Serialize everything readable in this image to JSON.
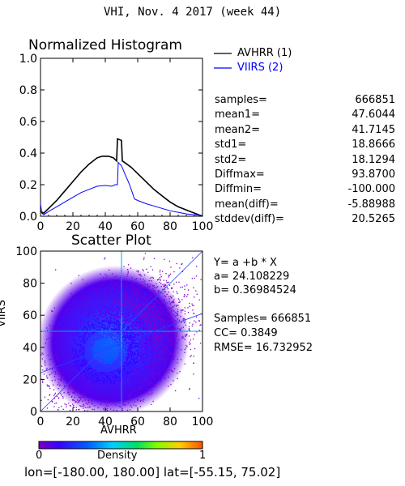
{
  "page_title": "VHI,  Nov. 4 2017 (week 44)",
  "footer": {
    "lon_label": "lon=",
    "lon_range": "[-180.00, 180.00]",
    "lat_label": "lat=",
    "lat_range": "[-55.15, 75.02]"
  },
  "colorbar": {
    "min": "0",
    "label": "Density",
    "max": "1"
  },
  "chart_data": [
    {
      "type": "line",
      "title": "Normalized Histogram",
      "xlim": [
        0,
        100
      ],
      "ylim": [
        0,
        1
      ],
      "x_ticks": [
        "0",
        "20",
        "40",
        "60",
        "80",
        "100"
      ],
      "y_ticks": [
        "0.0",
        "0.2",
        "0.4",
        "0.6",
        "0.8",
        "1.0"
      ],
      "series": [
        {
          "name": "AVHRR (1)",
          "color": "#000000",
          "points": [
            [
              0,
              0.03
            ],
            [
              2,
              0.02
            ],
            [
              5,
              0.05
            ],
            [
              10,
              0.1
            ],
            [
              15,
              0.16
            ],
            [
              20,
              0.22
            ],
            [
              25,
              0.28
            ],
            [
              30,
              0.33
            ],
            [
              35,
              0.37
            ],
            [
              38,
              0.38
            ],
            [
              42,
              0.38
            ],
            [
              45,
              0.37
            ],
            [
              47,
              0.35
            ],
            [
              47.5,
              0.49
            ],
            [
              50,
              0.48
            ],
            [
              50.5,
              0.35
            ],
            [
              52,
              0.34
            ],
            [
              56,
              0.31
            ],
            [
              60,
              0.27
            ],
            [
              65,
              0.22
            ],
            [
              70,
              0.17
            ],
            [
              75,
              0.13
            ],
            [
              80,
              0.09
            ],
            [
              85,
              0.06
            ],
            [
              90,
              0.04
            ],
            [
              95,
              0.02
            ],
            [
              100,
              0.0
            ]
          ]
        },
        {
          "name": "VIIRS (2)",
          "color": "#0000ff",
          "points": [
            [
              0,
              0.08
            ],
            [
              0.8,
              0.02
            ],
            [
              2,
              0.01
            ],
            [
              5,
              0.03
            ],
            [
              10,
              0.06
            ],
            [
              15,
              0.09
            ],
            [
              20,
              0.12
            ],
            [
              25,
              0.15
            ],
            [
              30,
              0.17
            ],
            [
              35,
              0.19
            ],
            [
              40,
              0.195
            ],
            [
              44,
              0.19
            ],
            [
              46,
              0.2
            ],
            [
              47.5,
              0.2
            ],
            [
              48,
              0.34
            ],
            [
              50,
              0.32
            ],
            [
              52,
              0.27
            ],
            [
              55,
              0.2
            ],
            [
              57,
              0.14
            ],
            [
              58,
              0.11
            ],
            [
              60,
              0.1
            ],
            [
              65,
              0.08
            ],
            [
              70,
              0.065
            ],
            [
              75,
              0.05
            ],
            [
              80,
              0.035
            ],
            [
              85,
              0.025
            ],
            [
              90,
              0.015
            ],
            [
              95,
              0.01
            ],
            [
              100,
              0.005
            ]
          ]
        }
      ],
      "legend_placement": "right"
    },
    {
      "type": "scatter",
      "title": "Scatter Plot",
      "xlabel": "AVHRR",
      "ylabel": "VIIRS",
      "xlim": [
        0,
        100
      ],
      "ylim": [
        0,
        100
      ],
      "x_ticks": [
        "0",
        "20",
        "40",
        "60",
        "80",
        "100"
      ],
      "y_ticks": [
        "0",
        "20",
        "40",
        "60",
        "80",
        "100"
      ],
      "regression": {
        "a": 24.108229,
        "b": 0.36984524
      },
      "colormap": "density"
    }
  ],
  "stats": [
    {
      "label": "samples=",
      "value": "666851"
    },
    {
      "label": "mean1=",
      "value": "47.6044"
    },
    {
      "label": "mean2=",
      "value": "41.7145"
    },
    {
      "label": "std1=",
      "value": "18.8666"
    },
    {
      "label": "std2=",
      "value": "18.1294"
    },
    {
      "label": "Diffmax=",
      "value": "93.8700"
    },
    {
      "label": "Diffmin=",
      "value": "-100.000"
    },
    {
      "label": "mean(diff)=",
      "value": "-5.88988"
    },
    {
      "label": "stddev(diff)=",
      "value": "20.5265"
    }
  ],
  "scatter_info": {
    "equation": "Y= a +b * X",
    "a_line": "a= 24.108229",
    "b_line": "b= 0.36984524",
    "samples_line": "Samples= 666851",
    "cc_line": "CC=  0.3849",
    "rmse_line": "RMSE= 16.732952"
  }
}
